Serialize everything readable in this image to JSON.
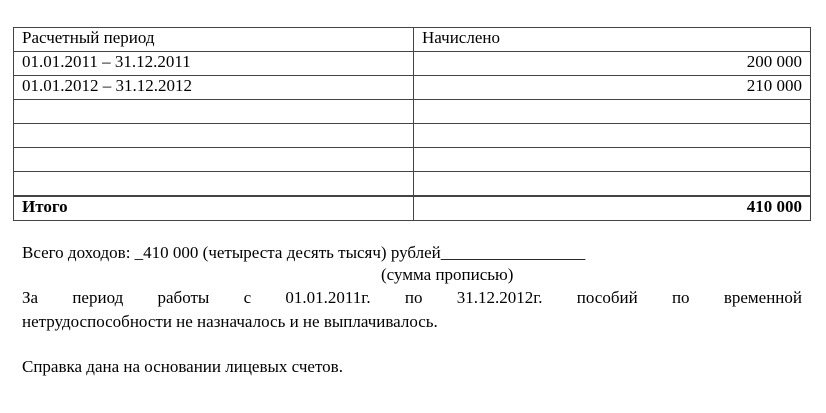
{
  "table": {
    "headers": [
      "Расчетный период",
      "Начислено"
    ],
    "rows": [
      [
        "01.01.2011 – 31.12.2011",
        "200 000"
      ],
      [
        "01.01.2012 – 31.12.2012",
        "210 000"
      ],
      [
        "",
        ""
      ],
      [
        "",
        ""
      ],
      [
        "",
        ""
      ],
      [
        "",
        ""
      ]
    ],
    "total_label": "Итого",
    "total_value": "410 000"
  },
  "income_line": "Всего доходов: _410 000 (четыреста десять тысяч) рублей_________________",
  "income_caption": "(сумма прописью)",
  "paragraph_line1": "За период работы с 01.01.2011г. по 31.12.2012г. пособий по временной",
  "paragraph_line2": "нетрудоспособности не назначалось и не выплачивалось.",
  "basis_line": "Справка дана на основании лицевых счетов."
}
